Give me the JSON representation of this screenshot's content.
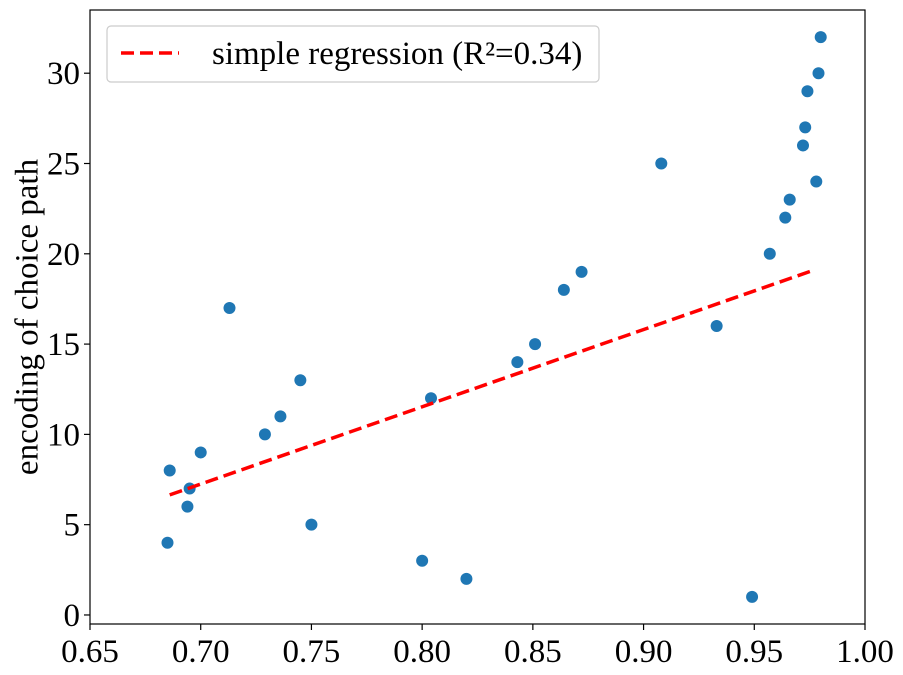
{
  "chart_data": {
    "type": "scatter",
    "title": "",
    "xlabel": "",
    "ylabel": "encoding of choice path",
    "xlim": [
      0.65,
      1.0
    ],
    "ylim": [
      -0.5,
      33.5
    ],
    "xticks": [
      "0.65",
      "0.70",
      "0.75",
      "0.80",
      "0.85",
      "0.90",
      "0.95",
      "1.00"
    ],
    "yticks": [
      "0",
      "5",
      "10",
      "15",
      "20",
      "25",
      "30"
    ],
    "grid": false,
    "legend_position": "top-left",
    "point_color": "#1f77b4",
    "line_color": "#ff0000",
    "series": [
      {
        "points": [
          {
            "x": 0.685,
            "y": 4
          },
          {
            "x": 0.686,
            "y": 8
          },
          {
            "x": 0.694,
            "y": 6
          },
          {
            "x": 0.695,
            "y": 7
          },
          {
            "x": 0.7,
            "y": 9
          },
          {
            "x": 0.713,
            "y": 17
          },
          {
            "x": 0.729,
            "y": 10
          },
          {
            "x": 0.736,
            "y": 11
          },
          {
            "x": 0.745,
            "y": 13
          },
          {
            "x": 0.75,
            "y": 5
          },
          {
            "x": 0.8,
            "y": 3
          },
          {
            "x": 0.804,
            "y": 12
          },
          {
            "x": 0.82,
            "y": 2
          },
          {
            "x": 0.843,
            "y": 14
          },
          {
            "x": 0.851,
            "y": 15
          },
          {
            "x": 0.864,
            "y": 18
          },
          {
            "x": 0.872,
            "y": 19
          },
          {
            "x": 0.908,
            "y": 25
          },
          {
            "x": 0.933,
            "y": 16
          },
          {
            "x": 0.949,
            "y": 1
          },
          {
            "x": 0.957,
            "y": 20
          },
          {
            "x": 0.964,
            "y": 22
          },
          {
            "x": 0.966,
            "y": 23
          },
          {
            "x": 0.972,
            "y": 26
          },
          {
            "x": 0.973,
            "y": 27
          },
          {
            "x": 0.974,
            "y": 29
          },
          {
            "x": 0.978,
            "y": 24
          },
          {
            "x": 0.979,
            "y": 30
          },
          {
            "x": 0.98,
            "y": 32
          }
        ]
      },
      {
        "name": "simple regression (R²=0.34)",
        "type": "line",
        "style": "dashed",
        "points": [
          {
            "x": 0.686,
            "y": 6.65
          },
          {
            "x": 0.977,
            "y": 19.1
          }
        ]
      }
    ]
  }
}
